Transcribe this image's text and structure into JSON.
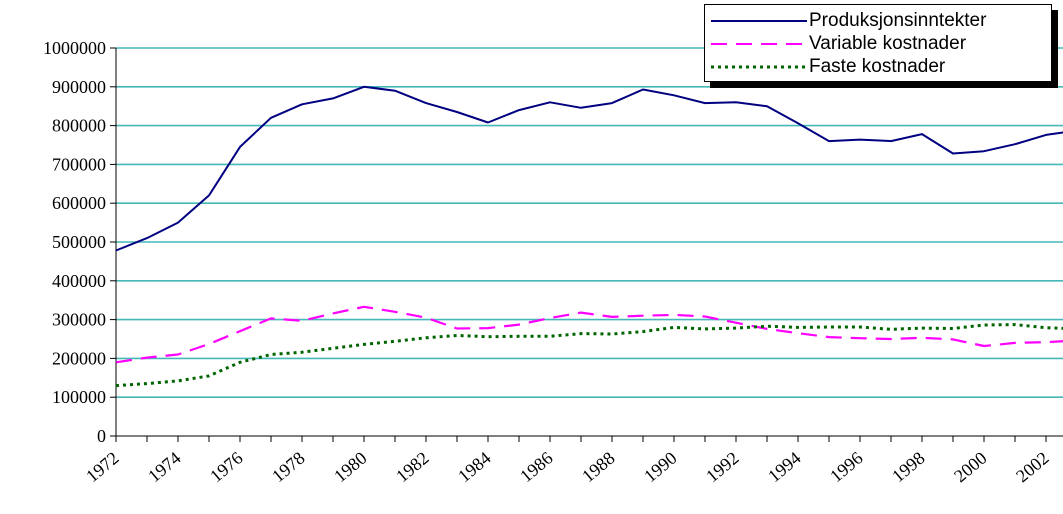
{
  "chart_data": {
    "type": "line",
    "x": [
      1972,
      1973,
      1974,
      1975,
      1976,
      1977,
      1978,
      1979,
      1980,
      1981,
      1982,
      1983,
      1984,
      1985,
      1986,
      1987,
      1988,
      1989,
      1990,
      1991,
      1992,
      1993,
      1994,
      1995,
      1996,
      1997,
      1998,
      1999,
      2000,
      2001,
      2002,
      2003
    ],
    "xtick_labels": [
      "1972",
      "1974",
      "1976",
      "1978",
      "1980",
      "1982",
      "1984",
      "1986",
      "1988",
      "1990",
      "1992",
      "1994",
      "1996",
      "1998",
      "2000",
      "2002"
    ],
    "ytick_labels": [
      "0",
      "100000",
      "200000",
      "300000",
      "400000",
      "500000",
      "600000",
      "700000",
      "800000",
      "900000",
      "1000000"
    ],
    "ylim": [
      0,
      1000000
    ],
    "grid": true,
    "legend_position": "top-right",
    "series": [
      {
        "name": "Produksjonsinntekter",
        "color": "#000080",
        "style": "solid",
        "values": [
          478000,
          510000,
          550000,
          620000,
          745000,
          820000,
          855000,
          870000,
          900000,
          890000,
          858000,
          835000,
          808000,
          840000,
          860000,
          846000,
          858000,
          893000,
          878000,
          858000,
          860000,
          850000,
          806000,
          760000,
          764000,
          760000,
          778000,
          728000,
          734000,
          752000,
          776000,
          787000
        ]
      },
      {
        "name": "Variable kostnader",
        "color": "#ff00ff",
        "style": "dashed",
        "values": [
          190000,
          202000,
          210000,
          237000,
          270000,
          303000,
          297000,
          316000,
          333000,
          320000,
          305000,
          277000,
          278000,
          287000,
          304000,
          318000,
          307000,
          310000,
          312000,
          308000,
          292000,
          276000,
          265000,
          255000,
          252000,
          250000,
          253000,
          249000,
          232000,
          240000,
          242000,
          246000
        ]
      },
      {
        "name": "Faste kostnader",
        "color": "#006400",
        "style": "dotted",
        "values": [
          130000,
          135000,
          142000,
          155000,
          190000,
          210000,
          216000,
          226000,
          236000,
          244000,
          253000,
          259000,
          256000,
          257000,
          257000,
          264000,
          263000,
          269000,
          280000,
          276000,
          278000,
          283000,
          280000,
          281000,
          281000,
          275000,
          278000,
          277000,
          286000,
          287000,
          279000,
          276000
        ]
      }
    ]
  }
}
